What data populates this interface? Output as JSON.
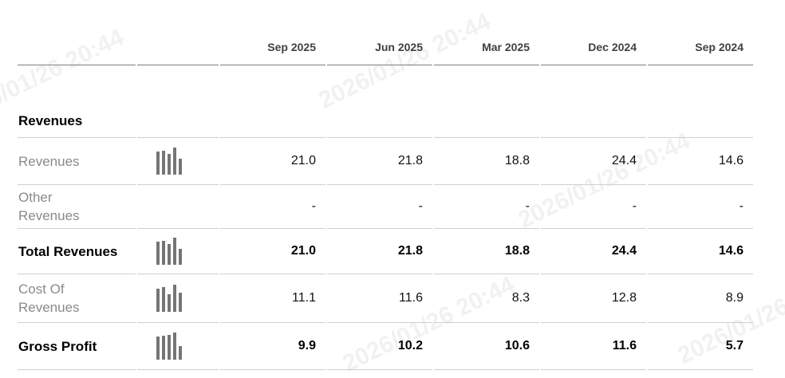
{
  "watermark": {
    "text": "2026/01/26 20:44"
  },
  "table": {
    "section_title": "Revenues",
    "columns": [
      "Sep 2025",
      "Jun 2025",
      "Mar 2025",
      "Dec 2024",
      "Sep 2024"
    ],
    "rows": [
      {
        "label": "Revenues",
        "values": [
          "21.0",
          "21.8",
          "18.8",
          "24.4",
          "14.6"
        ],
        "sparkline": [
          21.0,
          21.8,
          18.8,
          24.4,
          14.6
        ]
      },
      {
        "label": "Other Revenues",
        "values": [
          "-",
          "-",
          "-",
          "-",
          "-"
        ]
      },
      {
        "label": "Total Revenues",
        "values": [
          "21.0",
          "21.8",
          "18.8",
          "24.4",
          "14.6"
        ],
        "sparkline": [
          21.0,
          21.8,
          18.8,
          24.4,
          14.6
        ]
      },
      {
        "label": "Cost Of Revenues",
        "values": [
          "11.1",
          "11.6",
          "8.3",
          "12.8",
          "8.9"
        ],
        "sparkline": [
          11.1,
          11.6,
          8.3,
          12.8,
          8.9
        ]
      },
      {
        "label": "Gross Profit",
        "values": [
          "9.9",
          "10.2",
          "10.6",
          "11.6",
          "5.7"
        ],
        "sparkline": [
          9.9,
          10.2,
          10.6,
          11.6,
          5.7
        ]
      }
    ]
  },
  "colors": {
    "header_text": "#404040",
    "label_gray": "#8a8a8a",
    "value_dark": "#111111",
    "bold_black": "#000000",
    "divider_light": "#cfcfcf",
    "divider_dark": "#7f7f7f",
    "sparkline_bar": "#757575"
  }
}
